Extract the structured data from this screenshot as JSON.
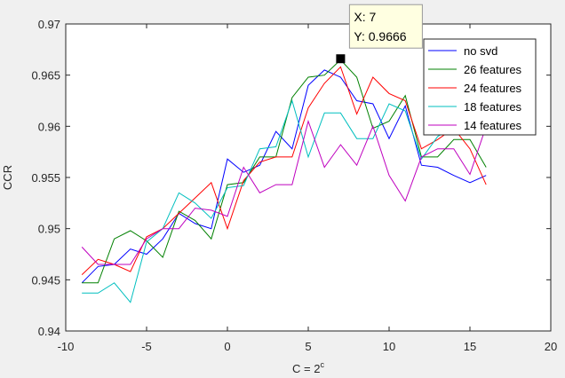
{
  "chart_data": {
    "type": "line",
    "title": "",
    "xlabel_base": "C = 2",
    "xlabel_sup": "c",
    "ylabel": "CCR",
    "xlim": [
      -10,
      20
    ],
    "ylim": [
      0.94,
      0.97
    ],
    "xticks": [
      -10,
      -5,
      0,
      5,
      10,
      15,
      20
    ],
    "xtick_labels": [
      "-10",
      "-5",
      "0",
      "5",
      "10",
      "15",
      "20"
    ],
    "yticks": [
      0.94,
      0.945,
      0.95,
      0.955,
      0.96,
      0.965,
      0.97
    ],
    "ytick_labels": [
      "0.94",
      "0.945",
      "0.95",
      "0.955",
      "0.96",
      "0.965",
      "0.97"
    ],
    "grid": false,
    "legend_position": "top-right",
    "x": [
      -9,
      -8,
      -7,
      -6,
      -5,
      -4,
      -3,
      -2,
      -1,
      0,
      1,
      2,
      3,
      4,
      5,
      6,
      7,
      8,
      9,
      10,
      11,
      12,
      13,
      14,
      15,
      16
    ],
    "series": [
      {
        "name": "no svd",
        "color": "#0000ff",
        "values": [
          0.9447,
          0.9463,
          0.9465,
          0.948,
          0.9475,
          0.949,
          0.9515,
          0.9505,
          0.95,
          0.9568,
          0.9555,
          0.9562,
          0.9595,
          0.9578,
          0.964,
          0.9655,
          0.9648,
          0.9625,
          0.9622,
          0.9588,
          0.962,
          0.9562,
          0.956,
          0.9552,
          0.9545,
          0.9552
        ]
      },
      {
        "name": "26 features",
        "color": "#008000",
        "values": [
          0.9447,
          0.9447,
          0.949,
          0.9498,
          0.9488,
          0.9472,
          0.9517,
          0.9508,
          0.949,
          0.9543,
          0.9545,
          0.957,
          0.957,
          0.9628,
          0.9648,
          0.965,
          0.9665,
          0.9648,
          0.9598,
          0.9605,
          0.963,
          0.957,
          0.957,
          0.9587,
          0.9587,
          0.956
        ]
      },
      {
        "name": "24 features",
        "color": "#ff0000",
        "values": [
          0.9455,
          0.947,
          0.9465,
          0.9458,
          0.9492,
          0.95,
          0.9515,
          0.953,
          0.9545,
          0.95,
          0.9547,
          0.9565,
          0.957,
          0.957,
          0.9618,
          0.9642,
          0.9658,
          0.9612,
          0.9648,
          0.9632,
          0.9625,
          0.9578,
          0.9587,
          0.9598,
          0.9578,
          0.9543
        ]
      },
      {
        "name": "18 features",
        "color": "#00bfbf",
        "values": [
          0.9437,
          0.9437,
          0.9447,
          0.9428,
          0.9487,
          0.95,
          0.9535,
          0.9525,
          0.951,
          0.954,
          0.9542,
          0.9578,
          0.958,
          0.9625,
          0.957,
          0.9613,
          0.9613,
          0.9588,
          0.9588,
          0.9622,
          0.9615,
          0.9568,
          0.959,
          0.96,
          0.9592,
          0.9592
        ]
      },
      {
        "name": "14 features",
        "color": "#bf00bf",
        "values": [
          0.9482,
          0.9465,
          0.9465,
          0.9465,
          0.949,
          0.95,
          0.95,
          0.952,
          0.9518,
          0.9512,
          0.956,
          0.9535,
          0.9543,
          0.9543,
          0.9605,
          0.956,
          0.9582,
          0.9562,
          0.96,
          0.9552,
          0.9527,
          0.957,
          0.9578,
          0.9578,
          0.9553,
          0.96
        ]
      }
    ],
    "datatip": {
      "x": 7,
      "y": 0.9666,
      "x_label": "X: 7",
      "y_label": "Y: 0.9666"
    }
  },
  "colors": {
    "figure_bg": "#f0f0f0",
    "axes_bg": "#ffffff",
    "axes_edge": "#262626",
    "datatip_bg": "#ffffe1",
    "datatip_edge": "#999999"
  }
}
